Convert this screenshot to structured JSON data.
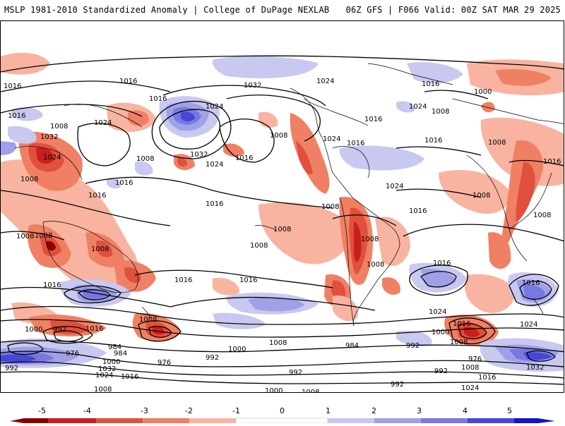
{
  "header": {
    "title": "MSLP 1981-2010 Standardized Anomaly | College of DuPage NEXLAB",
    "valid": "06Z GFS | F066 Valid: 00Z SAT MAR 29 2025"
  },
  "colors": {
    "neg5": "#8b0000",
    "neg4": "#c81e1e",
    "neg3": "#e0503c",
    "neg2": "#f08064",
    "neg1": "#f8b4a0",
    "pos1": "#c8c8f0",
    "pos2": "#a0a0e8",
    "pos3": "#7878e0",
    "pos4": "#4646d8",
    "pos5": "#1414c8"
  },
  "colorbar": {
    "ticks": [
      "-5",
      "-4",
      "-3",
      "-2",
      "-1",
      "0",
      "1",
      "2",
      "3",
      "4",
      "5"
    ]
  },
  "isobar_labels": [
    "1016",
    "1024",
    "1032",
    "1024",
    "1000",
    "1016",
    "1016",
    "1008",
    "1024",
    "1016",
    "1032",
    "1008",
    "1024",
    "1016",
    "1032",
    "1024",
    "1016",
    "1016",
    "1024",
    "1008",
    "1016",
    "1016",
    "1008",
    "1024",
    "1008",
    "1016",
    "1016",
    "1008",
    "1024",
    "1016",
    "1008",
    "1016",
    "1016",
    "1008",
    "1008",
    "1008",
    "1008",
    "1016",
    "1008",
    "1008",
    "1008",
    "1016",
    "1016",
    "1016",
    "1008",
    "1008",
    "1016",
    "1016",
    "1024",
    "1000",
    "992",
    "1016",
    "1024",
    "1008",
    "1000",
    "1008",
    "1008",
    "992",
    "992",
    "1000",
    "984",
    "976",
    "984",
    "976",
    "1000",
    "992",
    "992",
    "984",
    "976",
    "992",
    "1008",
    "1032",
    "1024",
    "1016",
    "1032",
    "1016",
    "1008",
    "1024",
    "1000",
    "1008",
    "992"
  ]
}
